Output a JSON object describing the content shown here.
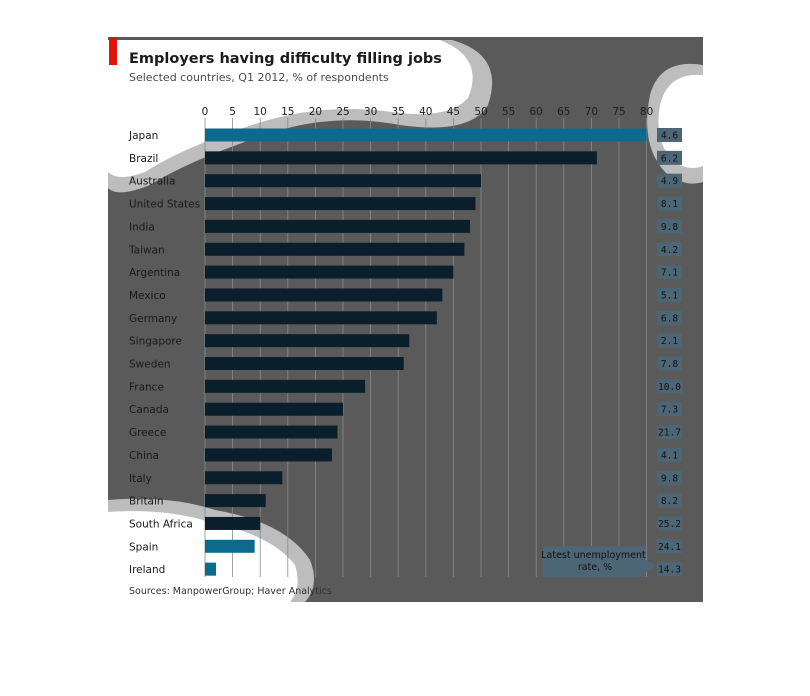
{
  "chart_data": {
    "type": "bar",
    "orientation": "horizontal",
    "title": "Employers having difficulty filling jobs",
    "subtitle": "Selected countries, Q1 2012, % of respondents",
    "xlim": [
      0,
      80
    ],
    "xticks": [
      "0",
      "5",
      "10",
      "15",
      "20",
      "25",
      "30",
      "35",
      "40",
      "45",
      "50",
      "55",
      "60",
      "65",
      "70",
      "75",
      "80"
    ],
    "categories": [
      "Japan",
      "Brazil",
      "Australia",
      "United States",
      "India",
      "Taiwan",
      "Argentina",
      "Mexico",
      "Germany",
      "Singapore",
      "Sweden",
      "France",
      "Canada",
      "Greece",
      "China",
      "Italy",
      "Britain",
      "South Africa",
      "Spain",
      "Ireland"
    ],
    "values": [
      80,
      71,
      50,
      49,
      48,
      47,
      45,
      43,
      42,
      37,
      36,
      29,
      25,
      24,
      23,
      14,
      11,
      10,
      9,
      2
    ],
    "unemployment_rate": [
      "4.6",
      "6.2",
      "4.9",
      "8.1",
      "9.8",
      "4.2",
      "7.1",
      "5.1",
      "6.8",
      "2.1",
      "7.8",
      "10.0",
      "7.3",
      "21.7",
      "4.1",
      "9.8",
      "8.2",
      "25.2",
      "24.1",
      "14.3"
    ],
    "legend": "Latest unemployment rate, %",
    "source": "Sources: ManpowerGroup; Haver Analytics",
    "grid": true,
    "colors": {
      "background": "#5a5a5a",
      "bar_dark": "#0a1f2b",
      "bar_highlight": "#0e6a8c",
      "bar_light": "#d2d8dc",
      "value_box": "#4d6675",
      "accent_red": "#e3120b",
      "lens_ring": "#b9b9b9"
    }
  }
}
